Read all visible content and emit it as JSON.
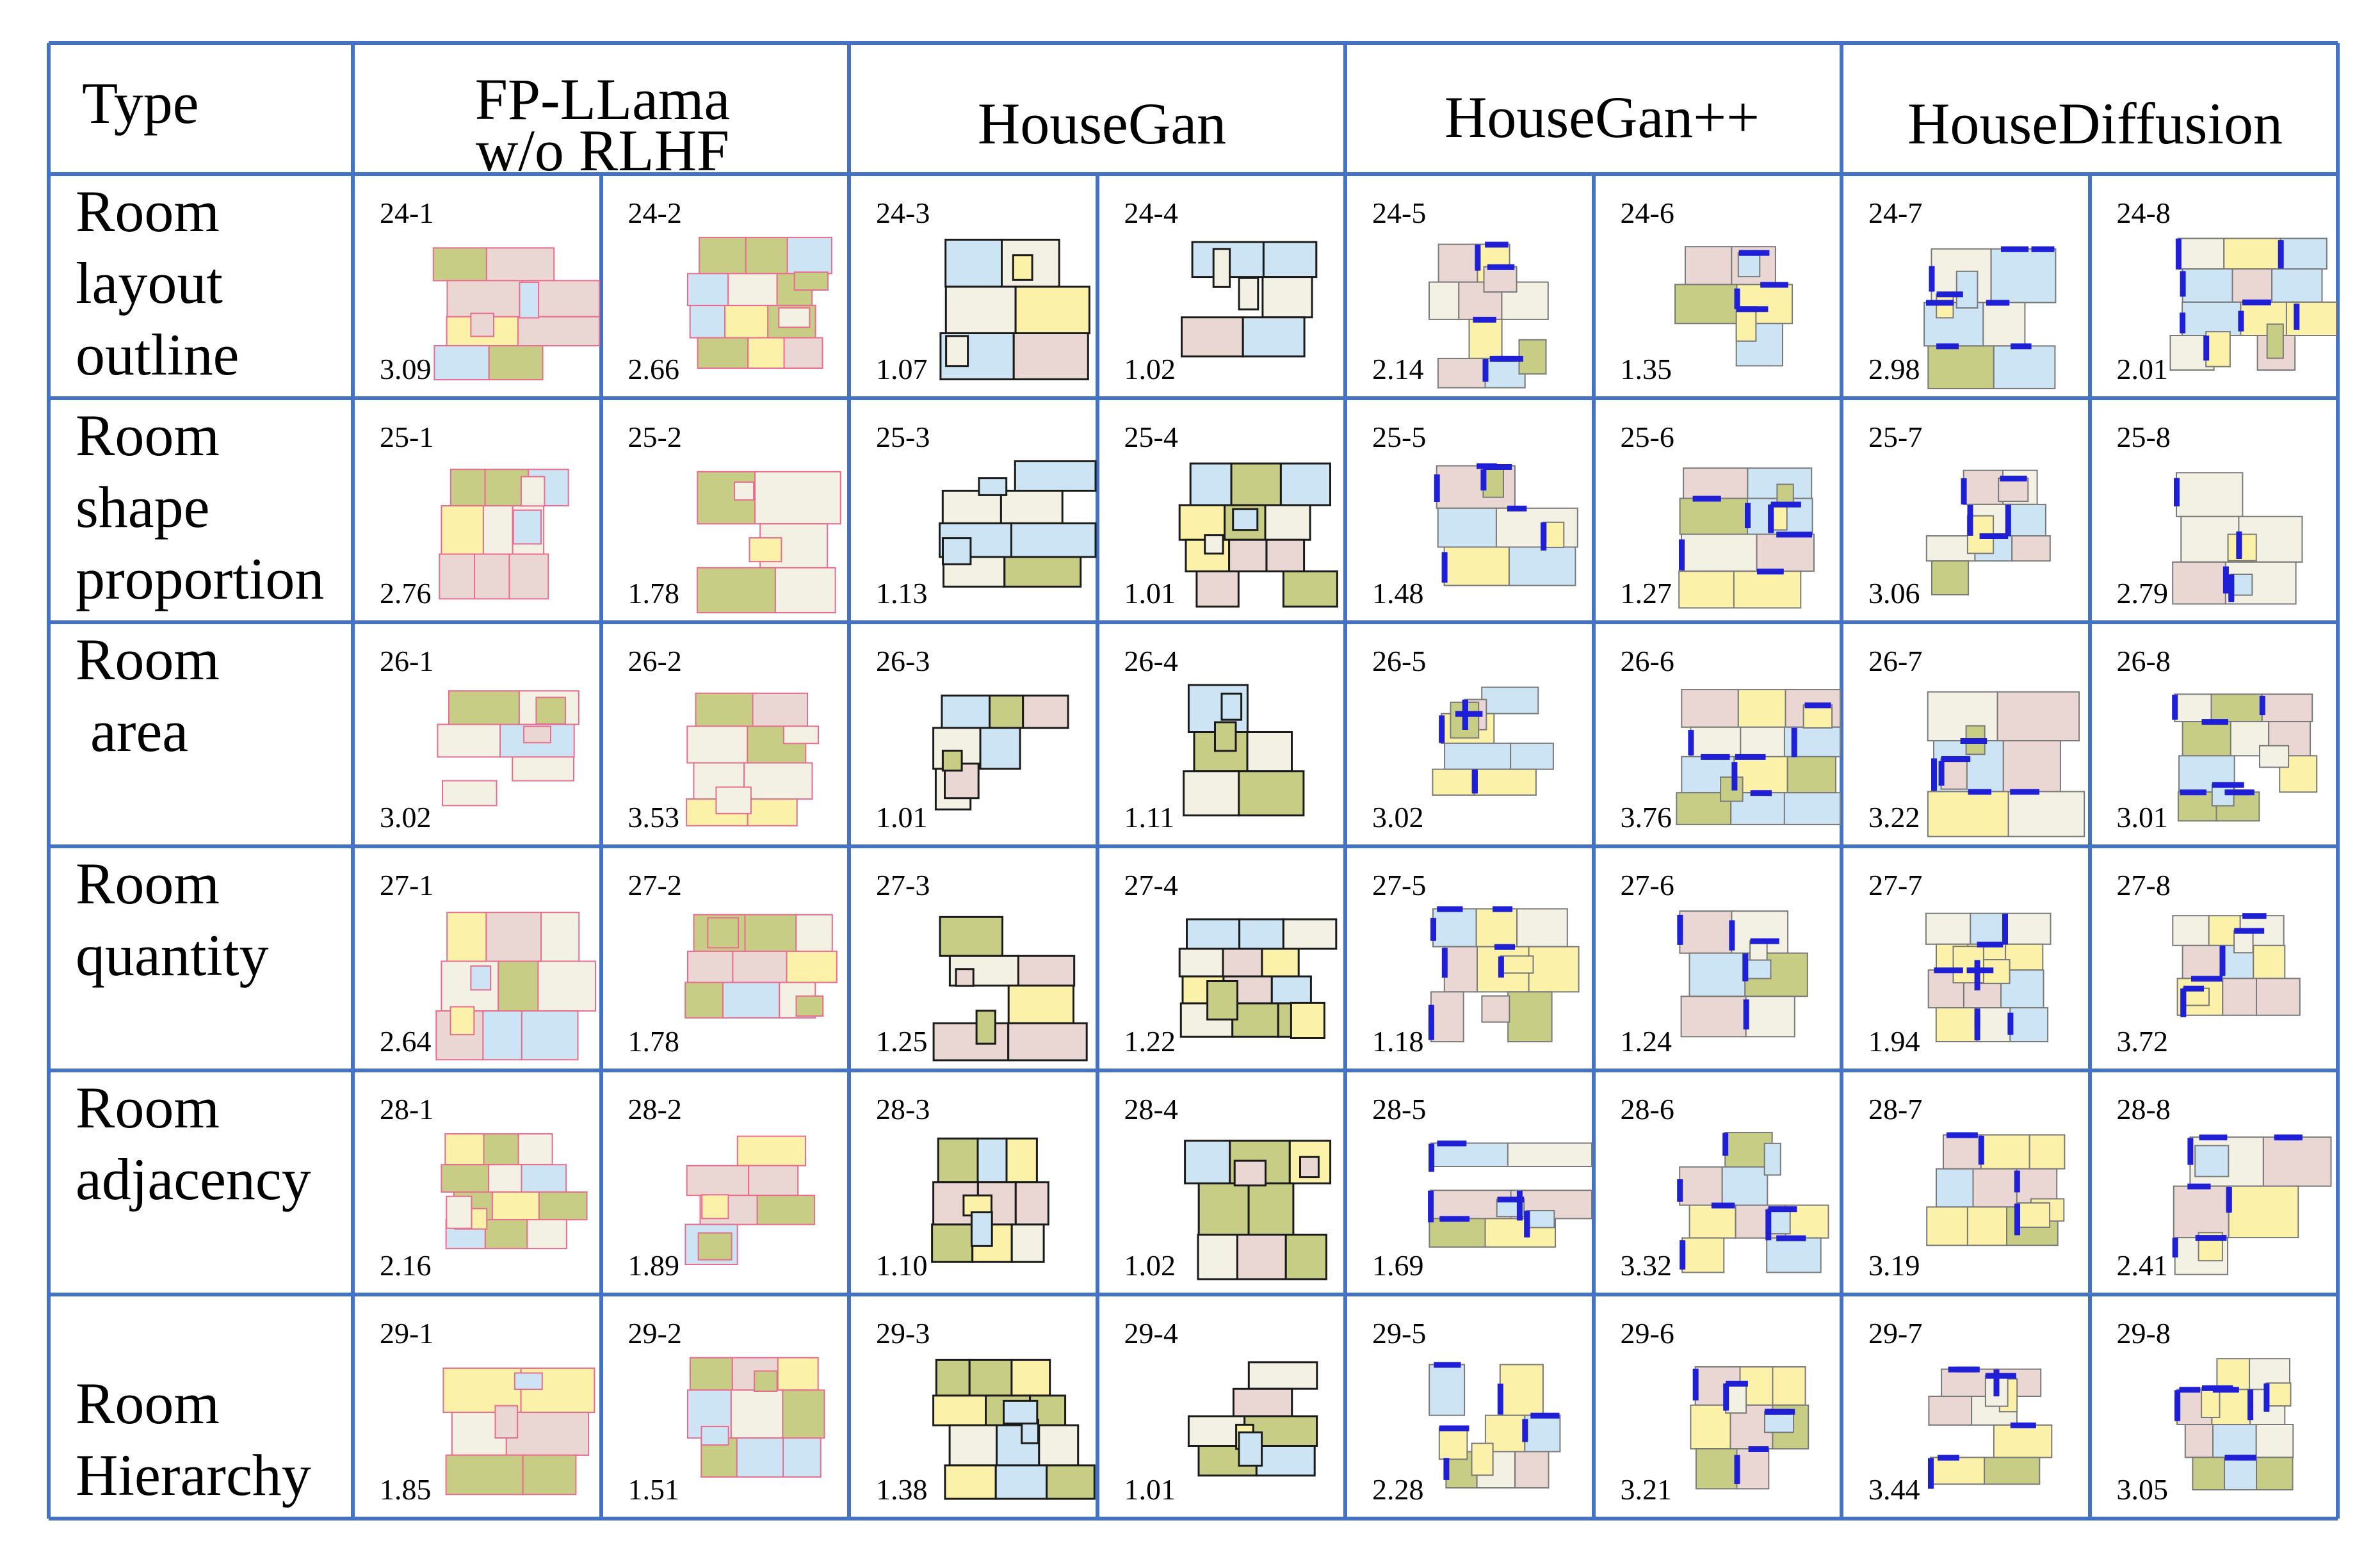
{
  "header": {
    "type_label": "Type",
    "columns": [
      {
        "line1": "FP-LLama",
        "line2": "w/o RLHF"
      },
      {
        "line1": "HouseGan",
        "line2": ""
      },
      {
        "line1": "HouseGan++",
        "line2": ""
      },
      {
        "line1": "HouseDiffusion",
        "line2": ""
      }
    ]
  },
  "colors": {
    "grid_line": "#4472c4",
    "yellow": "#fbf1a9",
    "cream": "#f3f0e4",
    "pink": "#ead6d3",
    "blue": "#cde4f4",
    "green": "#c8cd85",
    "door": "#1f1fd6",
    "red_stroke": "#e86d8f",
    "dark_stroke": "#1b1b1b",
    "gray_stroke": "#7a7a7a"
  },
  "rows": [
    {
      "label": "Room\nlayout\noutline",
      "cells": [
        {
          "id": "24-1",
          "score": "3.09"
        },
        {
          "id": "24-2",
          "score": "2.66"
        },
        {
          "id": "24-3",
          "score": "1.07"
        },
        {
          "id": "24-4",
          "score": "1.02"
        },
        {
          "id": "24-5",
          "score": "2.14"
        },
        {
          "id": "24-6",
          "score": "1.35"
        },
        {
          "id": "24-7",
          "score": "2.98"
        },
        {
          "id": "24-8",
          "score": "2.01"
        }
      ]
    },
    {
      "label": "Room\nshape\nproportion",
      "cells": [
        {
          "id": "25-1",
          "score": "2.76"
        },
        {
          "id": "25-2",
          "score": "1.78"
        },
        {
          "id": "25-3",
          "score": "1.13"
        },
        {
          "id": "25-4",
          "score": "1.01"
        },
        {
          "id": "25-5",
          "score": "1.48"
        },
        {
          "id": "25-6",
          "score": "1.27"
        },
        {
          "id": "25-7",
          "score": "3.06"
        },
        {
          "id": "25-8",
          "score": "2.79"
        }
      ]
    },
    {
      "label": "Room\n area",
      "cells": [
        {
          "id": "26-1",
          "score": "3.02"
        },
        {
          "id": "26-2",
          "score": "3.53"
        },
        {
          "id": "26-3",
          "score": "1.01"
        },
        {
          "id": "26-4",
          "score": "1.11"
        },
        {
          "id": "26-5",
          "score": "3.02"
        },
        {
          "id": "26-6",
          "score": "3.76"
        },
        {
          "id": "26-7",
          "score": "3.22"
        },
        {
          "id": "26-8",
          "score": "3.01"
        }
      ]
    },
    {
      "label": "Room\nquantity",
      "cells": [
        {
          "id": "27-1",
          "score": "2.64"
        },
        {
          "id": "27-2",
          "score": "1.78"
        },
        {
          "id": "27-3",
          "score": "1.25"
        },
        {
          "id": "27-4",
          "score": "1.22"
        },
        {
          "id": "27-5",
          "score": "1.18"
        },
        {
          "id": "27-6",
          "score": "1.24"
        },
        {
          "id": "27-7",
          "score": "1.94"
        },
        {
          "id": "27-8",
          "score": "3.72"
        }
      ]
    },
    {
      "label": "Room\nadjacency",
      "cells": [
        {
          "id": "28-1",
          "score": "2.16"
        },
        {
          "id": "28-2",
          "score": "1.89"
        },
        {
          "id": "28-3",
          "score": "1.10"
        },
        {
          "id": "28-4",
          "score": "1.02"
        },
        {
          "id": "28-5",
          "score": "1.69"
        },
        {
          "id": "28-6",
          "score": "3.32"
        },
        {
          "id": "28-7",
          "score": "3.19"
        },
        {
          "id": "28-8",
          "score": "2.41"
        }
      ]
    },
    {
      "label": "\nRoom\nHierarchy",
      "cells": [
        {
          "id": "29-1",
          "score": "1.85"
        },
        {
          "id": "29-2",
          "score": "1.51"
        },
        {
          "id": "29-3",
          "score": "1.38"
        },
        {
          "id": "29-4",
          "score": "1.01"
        },
        {
          "id": "29-5",
          "score": "2.28"
        },
        {
          "id": "29-6",
          "score": "3.21"
        },
        {
          "id": "29-7",
          "score": "3.44"
        },
        {
          "id": "29-8",
          "score": "3.05"
        }
      ]
    }
  ]
}
